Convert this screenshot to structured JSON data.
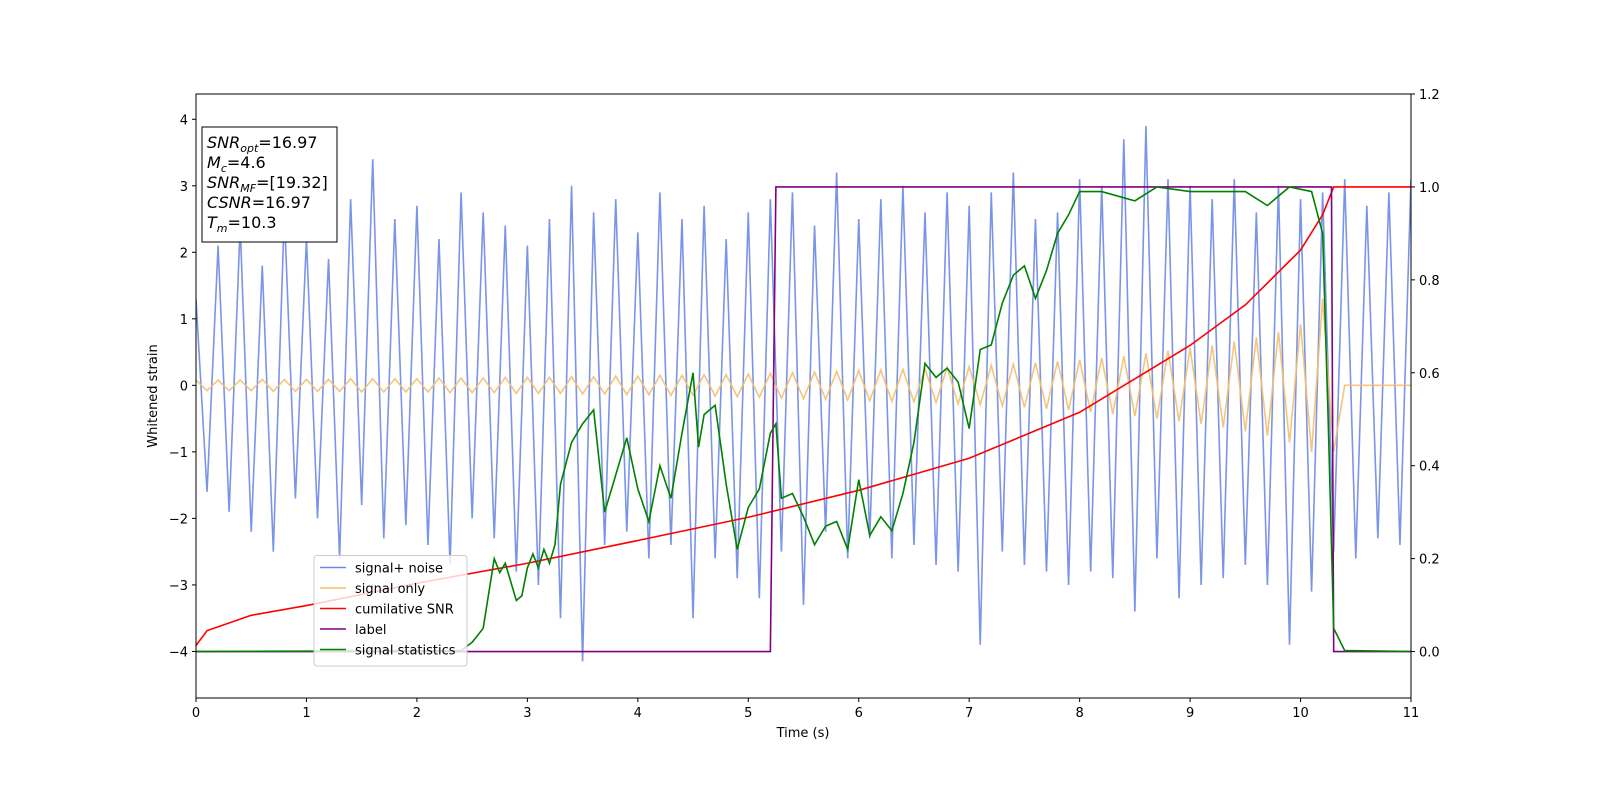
{
  "chart_data": {
    "type": "line",
    "xlabel": "Time (s)",
    "ylabel": "Whitened strain",
    "xlim": [
      0,
      11
    ],
    "ylim": [
      -4.7,
      4.38
    ],
    "y2lim": [
      -0.1,
      1.2
    ],
    "xticks": [
      0,
      1,
      2,
      3,
      4,
      5,
      6,
      7,
      8,
      9,
      10,
      11
    ],
    "yticks": [
      {
        "value": -4,
        "label": "−4"
      },
      {
        "value": -3,
        "label": "−3"
      },
      {
        "value": -2,
        "label": "−2"
      },
      {
        "value": -1,
        "label": "−1"
      },
      0,
      1,
      2,
      3,
      4
    ],
    "y2ticks": [
      {
        "value": 0,
        "label": "0.0"
      },
      0.2,
      0.4,
      0.6,
      0.8,
      {
        "value": 1,
        "label": "1.0"
      },
      1.2
    ],
    "legend": {
      "loc": "lower left"
    },
    "annotation": [
      {
        "main": "SNR",
        "sub": "opt",
        "rest": "=16.97"
      },
      {
        "main": "M",
        "sub": "c",
        "rest": "=4.6"
      },
      {
        "main": "SNR",
        "sub": "MF",
        "rest": "=[19.32]"
      },
      {
        "main": "CSNR",
        "rest": "=16.97"
      },
      {
        "main": "T",
        "sub": "m",
        "rest": "=10.3"
      }
    ],
    "series": [
      {
        "name": "signal+ noise",
        "color": "#6b88e6",
        "x": [
          0,
          0.1,
          0.2,
          0.3,
          0.4,
          0.5,
          0.6,
          0.7,
          0.8,
          0.9,
          1,
          1.1,
          1.2,
          1.3,
          1.4,
          1.5,
          1.6,
          1.7,
          1.8,
          1.9,
          2,
          2.1,
          2.2,
          2.3,
          2.4,
          2.5,
          2.6,
          2.7,
          2.8,
          2.9,
          3,
          3.1,
          3.2,
          3.3,
          3.4,
          3.5,
          3.6,
          3.7,
          3.8,
          3.9,
          4,
          4.1,
          4.2,
          4.3,
          4.4,
          4.5,
          4.6,
          4.7,
          4.8,
          4.9,
          5,
          5.1,
          5.2,
          5.3,
          5.4,
          5.5,
          5.6,
          5.7,
          5.8,
          5.9,
          6,
          6.1,
          6.2,
          6.3,
          6.4,
          6.5,
          6.6,
          6.7,
          6.8,
          6.9,
          7,
          7.1,
          7.2,
          7.3,
          7.4,
          7.5,
          7.6,
          7.7,
          7.8,
          7.9,
          8,
          8.1,
          8.2,
          8.3,
          8.4,
          8.5,
          8.6,
          8.7,
          8.8,
          8.9,
          9,
          9.1,
          9.2,
          9.3,
          9.4,
          9.5,
          9.6,
          9.7,
          9.8,
          9.9,
          10,
          10.1,
          10.2,
          10.3,
          10.4,
          10.5,
          10.6,
          10.7,
          10.8,
          10.9,
          11
        ],
        "values": [
          1.3,
          -1.6,
          2.1,
          -1.9,
          2.4,
          -2.2,
          1.8,
          -2.5,
          2.6,
          -1.7,
          2.2,
          -2.0,
          1.9,
          -2.6,
          2.8,
          -1.8,
          3.4,
          -2.3,
          2.5,
          -2.1,
          2.7,
          -2.4,
          2.2,
          -2.7,
          2.9,
          -2.0,
          2.6,
          -2.3,
          2.4,
          -2.8,
          2.1,
          -3.0,
          2.5,
          -3.5,
          3.0,
          -4.15,
          2.6,
          -2.4,
          2.8,
          -2.2,
          2.3,
          -2.6,
          2.9,
          -2.4,
          2.5,
          -3.5,
          2.7,
          -2.6,
          2.2,
          -2.9,
          2.6,
          -3.2,
          2.8,
          -2.5,
          2.9,
          -3.3,
          2.4,
          -2.2,
          3.2,
          -2.6,
          2.5,
          -2.3,
          2.8,
          -2.6,
          3.0,
          -2.4,
          2.6,
          -2.7,
          2.9,
          -2.8,
          2.7,
          -3.9,
          2.9,
          -2.5,
          3.2,
          -2.7,
          2.5,
          -2.8,
          2.6,
          -3.0,
          3.1,
          -2.8,
          3.0,
          -2.9,
          3.7,
          -3.4,
          3.9,
          -2.6,
          3.1,
          -3.2,
          3.0,
          -3.0,
          2.8,
          -2.9,
          3.1,
          -2.7,
          2.6,
          -3.0,
          3.0,
          -3.9,
          2.8,
          -3.1,
          2.9,
          -2.5,
          3.1,
          -2.6,
          2.7,
          -2.3,
          2.9,
          -2.4,
          3.1
        ]
      },
      {
        "name": "signal only",
        "color": "#f5be6e",
        "x": [
          0,
          0.1,
          0.2,
          0.3,
          0.4,
          0.5,
          0.6,
          0.7,
          0.8,
          0.9,
          1,
          1.1,
          1.2,
          1.3,
          1.4,
          1.5,
          1.6,
          1.7,
          1.8,
          1.9,
          2,
          2.1,
          2.2,
          2.3,
          2.4,
          2.5,
          2.6,
          2.7,
          2.8,
          2.9,
          3,
          3.1,
          3.2,
          3.3,
          3.4,
          3.5,
          3.6,
          3.7,
          3.8,
          3.9,
          4,
          4.1,
          4.2,
          4.3,
          4.4,
          4.5,
          4.6,
          4.7,
          4.8,
          4.9,
          5,
          5.1,
          5.2,
          5.3,
          5.4,
          5.5,
          5.6,
          5.7,
          5.8,
          5.9,
          6,
          6.1,
          6.2,
          6.3,
          6.4,
          6.5,
          6.6,
          6.7,
          6.8,
          6.9,
          7,
          7.1,
          7.2,
          7.3,
          7.4,
          7.5,
          7.6,
          7.7,
          7.8,
          7.9,
          8,
          8.1,
          8.2,
          8.3,
          8.4,
          8.5,
          8.6,
          8.7,
          8.8,
          8.9,
          9,
          9.1,
          9.2,
          9.3,
          9.4,
          9.5,
          9.6,
          9.7,
          9.8,
          9.9,
          10,
          10.1,
          10.2,
          10.3,
          10.4,
          10.5,
          10.6,
          10.7,
          10.8,
          10.9,
          11
        ],
        "values": [
          0.08,
          -0.08,
          0.08,
          -0.08,
          0.08,
          -0.08,
          0.09,
          -0.09,
          0.09,
          -0.09,
          0.09,
          -0.09,
          0.09,
          -0.09,
          0.1,
          -0.1,
          0.1,
          -0.1,
          0.1,
          -0.1,
          0.1,
          -0.1,
          0.11,
          -0.11,
          0.11,
          -0.11,
          0.11,
          -0.11,
          0.12,
          -0.12,
          0.12,
          -0.12,
          0.12,
          -0.12,
          0.13,
          -0.13,
          0.13,
          -0.13,
          0.14,
          -0.14,
          0.14,
          -0.14,
          0.15,
          -0.15,
          0.15,
          -0.15,
          0.16,
          -0.16,
          0.16,
          -0.17,
          0.17,
          -0.18,
          0.18,
          -0.19,
          0.19,
          -0.2,
          0.2,
          -0.21,
          0.21,
          -0.22,
          0.22,
          -0.23,
          0.23,
          -0.24,
          0.24,
          -0.25,
          0.25,
          -0.26,
          0.27,
          -0.28,
          0.28,
          -0.29,
          0.3,
          -0.31,
          0.32,
          -0.33,
          0.34,
          -0.35,
          0.36,
          -0.37,
          0.38,
          -0.4,
          0.41,
          -0.43,
          0.44,
          -0.46,
          0.48,
          -0.5,
          0.52,
          -0.54,
          0.56,
          -0.58,
          0.6,
          -0.63,
          0.66,
          -0.69,
          0.72,
          -0.76,
          0.8,
          -0.86,
          0.92,
          -1.0,
          1.3,
          -1.0,
          0,
          0,
          0,
          0,
          0,
          0,
          0
        ]
      },
      {
        "name": "cumilative SNR",
        "color": "#ff0000",
        "axis": "y2",
        "x": [
          0,
          0.1,
          0.5,
          1,
          2,
          3,
          4,
          5,
          6,
          7,
          8,
          9,
          9.5,
          10,
          10.2,
          10.3,
          11
        ],
        "values": [
          0.013,
          0.045,
          0.078,
          0.099,
          0.147,
          0.19,
          0.239,
          0.289,
          0.347,
          0.416,
          0.515,
          0.659,
          0.746,
          0.864,
          0.94,
          1.0,
          1.0
        ]
      },
      {
        "name": "label",
        "color": "#800080",
        "axis": "y2",
        "x": [
          0,
          5.2,
          5.25,
          10.28,
          10.3,
          11
        ],
        "values": [
          0,
          0,
          1,
          1,
          0,
          0
        ]
      },
      {
        "name": "signal statistics",
        "color": "#008000",
        "axis": "y2",
        "x": [
          0,
          2.4,
          2.5,
          2.6,
          2.7,
          2.75,
          2.8,
          2.85,
          2.9,
          2.95,
          3.0,
          3.05,
          3.1,
          3.15,
          3.2,
          3.25,
          3.3,
          3.4,
          3.5,
          3.6,
          3.7,
          3.8,
          3.9,
          4.0,
          4.1,
          4.2,
          4.3,
          4.4,
          4.5,
          4.55,
          4.6,
          4.7,
          4.8,
          4.9,
          5.0,
          5.1,
          5.2,
          5.25,
          5.3,
          5.4,
          5.5,
          5.6,
          5.7,
          5.8,
          5.9,
          6.0,
          6.1,
          6.2,
          6.3,
          6.4,
          6.5,
          6.6,
          6.7,
          6.8,
          6.9,
          7.0,
          7.1,
          7.2,
          7.3,
          7.4,
          7.5,
          7.6,
          7.7,
          7.8,
          7.9,
          8.0,
          8.2,
          8.5,
          8.7,
          9.0,
          9.5,
          9.7,
          9.9,
          10.1,
          10.2,
          10.25,
          10.3,
          10.4,
          11
        ],
        "values": [
          0,
          0.002,
          0.02,
          0.05,
          0.2,
          0.17,
          0.19,
          0.15,
          0.11,
          0.12,
          0.18,
          0.21,
          0.18,
          0.22,
          0.19,
          0.23,
          0.36,
          0.45,
          0.49,
          0.52,
          0.3,
          0.38,
          0.46,
          0.35,
          0.28,
          0.4,
          0.33,
          0.47,
          0.6,
          0.44,
          0.51,
          0.53,
          0.36,
          0.22,
          0.31,
          0.35,
          0.47,
          0.49,
          0.33,
          0.34,
          0.29,
          0.23,
          0.27,
          0.28,
          0.22,
          0.37,
          0.25,
          0.29,
          0.26,
          0.34,
          0.45,
          0.62,
          0.59,
          0.61,
          0.58,
          0.48,
          0.65,
          0.66,
          0.75,
          0.81,
          0.83,
          0.76,
          0.82,
          0.9,
          0.94,
          0.99,
          0.99,
          0.97,
          1.0,
          0.99,
          0.99,
          0.96,
          1.0,
          0.99,
          0.9,
          0.5,
          0.05,
          0.002,
          0
        ]
      }
    ]
  }
}
